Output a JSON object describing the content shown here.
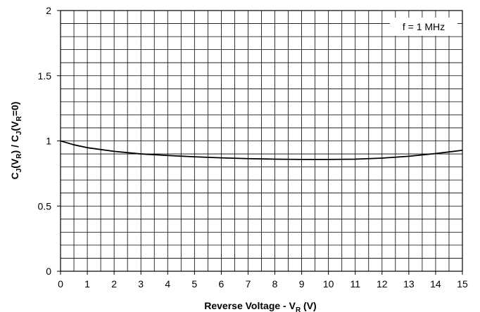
{
  "chart_data": {
    "type": "line",
    "xlabel": {
      "main": "Reverse Voltage - V",
      "sub": "R",
      "unit": " (V)"
    },
    "ylabel": {
      "parts": [
        {
          "t": "C",
          "sub": false
        },
        {
          "t": "J",
          "sub": true
        },
        {
          "t": "(V",
          "sub": false
        },
        {
          "t": "R",
          "sub": true
        },
        {
          "t": ") / C",
          "sub": false
        },
        {
          "t": "J",
          "sub": true
        },
        {
          "t": "(V",
          "sub": false
        },
        {
          "t": "R",
          "sub": true
        },
        {
          "t": "=0)",
          "sub": false
        }
      ]
    },
    "annotation": "f = 1 MHz",
    "xlim": [
      0,
      15
    ],
    "ylim": [
      0,
      2
    ],
    "x_ticks": [
      0,
      1,
      2,
      3,
      4,
      5,
      6,
      7,
      8,
      9,
      10,
      11,
      12,
      13,
      14,
      15
    ],
    "y_ticks": [
      0,
      0.5,
      1,
      1.5,
      2
    ],
    "x_minor_step": 0.5,
    "y_minor_step": 0.1,
    "grid": true,
    "series": [
      {
        "x": [
          0,
          0.5,
          1,
          2,
          3,
          4,
          5,
          6,
          7,
          8,
          9,
          10,
          11,
          12,
          13,
          14,
          15
        ],
        "y": [
          1.0,
          0.97,
          0.948,
          0.92,
          0.9,
          0.888,
          0.878,
          0.87,
          0.864,
          0.86,
          0.858,
          0.858,
          0.86,
          0.868,
          0.882,
          0.903,
          0.928
        ]
      }
    ]
  }
}
